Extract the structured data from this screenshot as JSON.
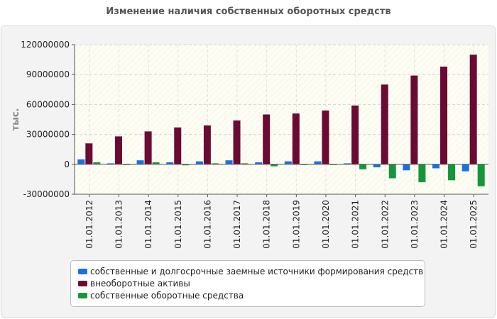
{
  "chart_data": {
    "type": "bar",
    "title": "Изменение наличия собственных оборотных средств",
    "ylabel": "тыс.",
    "xlabel": "",
    "ylim": [
      -30000000,
      120000000
    ],
    "yticks": [
      -30000000,
      0,
      30000000,
      60000000,
      90000000,
      120000000
    ],
    "ytick_labels": [
      "-30000000",
      "0",
      "30000000",
      "60000000",
      "90000000",
      "120000000"
    ],
    "categories": [
      "01.01.2012",
      "01.01.2013",
      "01.01.2014",
      "01.01.2015",
      "01.01.2016",
      "01.01.2017",
      "01.01.2018",
      "01.01.2019",
      "01.01.2020",
      "01.01.2021",
      "01.01.2022",
      "01.01.2023",
      "01.01.2024",
      "01.01.2025"
    ],
    "series": [
      {
        "name": "собственные и долгосрочные заемные источники формирования средств",
        "color": "#1a6fe8",
        "values": [
          5000000,
          1000000,
          4000000,
          2000000,
          3000000,
          4000000,
          2000000,
          3000000,
          3000000,
          1000000,
          -3000000,
          -6000000,
          -4000000,
          -7000000
        ]
      },
      {
        "name": "внеоборотные активы",
        "color": "#6b0a33",
        "values": [
          21000000,
          28000000,
          33000000,
          37000000,
          39000000,
          44000000,
          50000000,
          51000000,
          54000000,
          59000000,
          80000000,
          89000000,
          98000000,
          110000000
        ]
      },
      {
        "name": "собственные оборотные средства",
        "color": "#16963a",
        "values": [
          2000000,
          0,
          2000000,
          -1000000,
          1000000,
          1000000,
          -2000000,
          0,
          0,
          -5000000,
          -14000000,
          -18000000,
          -16000000,
          -22000000
        ]
      }
    ],
    "grid": true,
    "legend_position": "bottom"
  }
}
